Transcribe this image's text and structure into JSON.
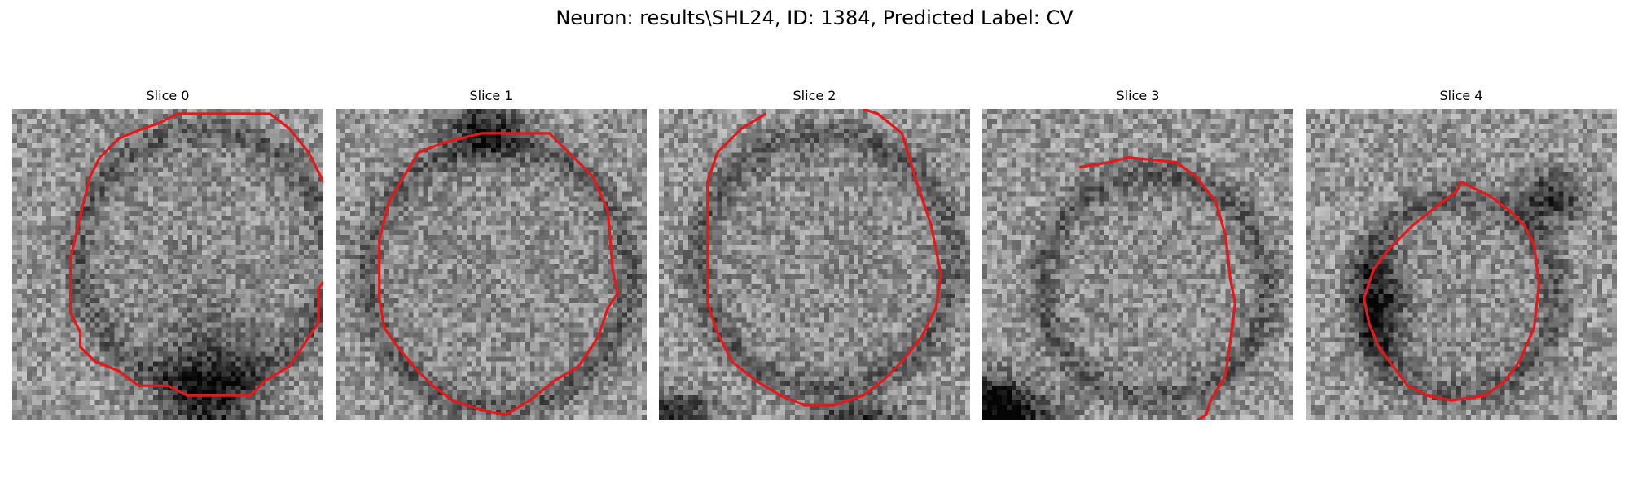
{
  "figure": {
    "title": "Neuron: results\\SHL24, ID: 1384, Predicted Label: CV",
    "colormap": "gray",
    "contour_color": "#e31a1c"
  },
  "slices": [
    {
      "title": "Slice 0",
      "contour": [
        [
          30,
          3
        ],
        [
          34,
          1
        ],
        [
          53,
          1
        ],
        [
          57,
          4
        ],
        [
          61,
          9
        ],
        [
          66,
          19
        ],
        [
          66,
          33
        ],
        [
          63,
          37
        ],
        [
          63,
          44
        ],
        [
          59,
          50
        ],
        [
          57,
          53
        ],
        [
          52,
          56
        ],
        [
          49,
          59
        ],
        [
          36,
          59
        ],
        [
          32,
          57
        ],
        [
          26,
          57
        ],
        [
          22,
          54
        ],
        [
          17,
          52
        ],
        [
          14,
          49
        ],
        [
          14,
          46
        ],
        [
          12,
          42
        ],
        [
          12,
          31
        ],
        [
          14,
          22
        ],
        [
          16,
          14
        ],
        [
          18,
          10
        ],
        [
          22,
          6
        ],
        [
          27,
          4
        ],
        [
          30,
          3
        ]
      ]
    },
    {
      "title": "Slice 1",
      "contour": [
        [
          30,
          5
        ],
        [
          44,
          5
        ],
        [
          49,
          10
        ],
        [
          53,
          14
        ],
        [
          56,
          21
        ],
        [
          57,
          33
        ],
        [
          58,
          38
        ],
        [
          56,
          41
        ],
        [
          54,
          47
        ],
        [
          50,
          53
        ],
        [
          45,
          56
        ],
        [
          40,
          60
        ],
        [
          35,
          63
        ],
        [
          30,
          62
        ],
        [
          24,
          60
        ],
        [
          20,
          57
        ],
        [
          16,
          53
        ],
        [
          12,
          48
        ],
        [
          10,
          45
        ],
        [
          9,
          39
        ],
        [
          9,
          27
        ],
        [
          11,
          19
        ],
        [
          14,
          14
        ],
        [
          17,
          9
        ],
        [
          22,
          7
        ],
        [
          26,
          6
        ],
        [
          30,
          5
        ]
      ]
    },
    {
      "title": "Slice 2",
      "contour": [
        [
          22,
          1
        ],
        [
          17,
          4
        ],
        [
          12,
          9
        ],
        [
          10,
          15
        ],
        [
          10,
          40
        ],
        [
          12,
          46
        ],
        [
          15,
          52
        ],
        [
          20,
          56
        ],
        [
          25,
          59
        ],
        [
          30,
          61
        ],
        [
          36,
          61
        ],
        [
          42,
          59
        ],
        [
          46,
          56
        ],
        [
          50,
          52
        ],
        [
          54,
          47
        ],
        [
          57,
          41
        ],
        [
          58,
          34
        ],
        [
          56,
          24
        ],
        [
          53,
          15
        ],
        [
          50,
          5
        ],
        [
          45,
          1
        ],
        [
          42,
          0
        ]
      ]
    },
    {
      "title": "Slice 3",
      "contour": [
        [
          20,
          12
        ],
        [
          26,
          11
        ],
        [
          30,
          10
        ],
        [
          40,
          11
        ],
        [
          44,
          14
        ],
        [
          48,
          19
        ],
        [
          50,
          26
        ],
        [
          51,
          35
        ],
        [
          52,
          40
        ],
        [
          51,
          48
        ],
        [
          50,
          55
        ],
        [
          47,
          60
        ],
        [
          46,
          63
        ],
        [
          43,
          65
        ]
      ]
    },
    {
      "title": "Slice 4",
      "contour": [
        [
          32,
          15
        ],
        [
          38,
          18
        ],
        [
          42,
          21
        ],
        [
          45,
          24
        ],
        [
          47,
          28
        ],
        [
          48,
          36
        ],
        [
          47,
          45
        ],
        [
          44,
          52
        ],
        [
          41,
          56
        ],
        [
          37,
          59
        ],
        [
          30,
          60
        ],
        [
          25,
          59
        ],
        [
          21,
          57
        ],
        [
          18,
          53
        ],
        [
          15,
          49
        ],
        [
          13,
          44
        ],
        [
          12,
          39
        ],
        [
          14,
          33
        ],
        [
          17,
          29
        ],
        [
          22,
          24
        ],
        [
          27,
          20
        ],
        [
          31,
          17
        ],
        [
          32,
          15
        ]
      ]
    }
  ]
}
